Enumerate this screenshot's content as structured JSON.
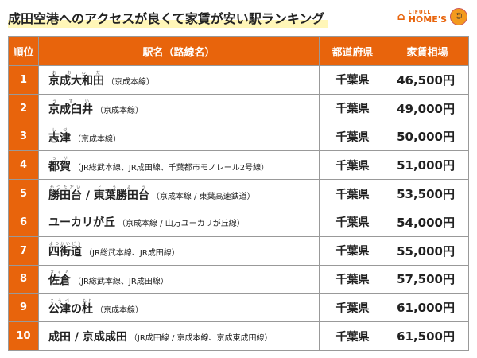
{
  "title": "成田空港へのアクセスが良くて家賃が安い駅ランキング",
  "logo": {
    "small": "LIFULL",
    "big": "HOME'S",
    "icon": "house-icon"
  },
  "colors": {
    "accent": "#e8640c",
    "highlight": "#fff6b8"
  },
  "headers": [
    "順位",
    "駅名（路線名）",
    "都道府県",
    "家賃相場"
  ],
  "rows": [
    {
      "rank": "1",
      "parts": [
        {
          "t": "京成大和田",
          "r": "おおわだ"
        }
      ],
      "line": "（京成本線）",
      "pref": "千葉県",
      "rent": "46,500円"
    },
    {
      "rank": "2",
      "parts": [
        {
          "t": "京成臼井",
          "r": "うすい"
        }
      ],
      "line": "（京成本線）",
      "pref": "千葉県",
      "rent": "49,000円"
    },
    {
      "rank": "3",
      "parts": [
        {
          "t": "志津",
          "r": "しづ"
        }
      ],
      "line": "（京成本線）",
      "pref": "千葉県",
      "rent": "50,000円"
    },
    {
      "rank": "4",
      "parts": [
        {
          "t": "都賀",
          "r": "つが"
        }
      ],
      "line": "（JR総武本線、JR成田線、千葉都市モノレール2号線）",
      "pref": "千葉県",
      "rent": "51,000円"
    },
    {
      "rank": "5",
      "parts": [
        {
          "t": "勝田台",
          "r": "かつただい"
        },
        {
          "t": " / "
        },
        {
          "t": "東葉勝田台",
          "r": "とうよう"
        }
      ],
      "line": "（京成本線 / 東葉高速鉄道）",
      "pref": "千葉県",
      "rent": "53,500円"
    },
    {
      "rank": "6",
      "parts": [
        {
          "t": "ユーカリが丘"
        }
      ],
      "line": "（京成本線 / 山万ユーカリが丘線）",
      "pref": "千葉県",
      "rent": "54,000円"
    },
    {
      "rank": "7",
      "parts": [
        {
          "t": "四街道",
          "r": "よつかいどう"
        }
      ],
      "line": "（JR総武本線、JR成田線）",
      "pref": "千葉県",
      "rent": "55,000円"
    },
    {
      "rank": "8",
      "parts": [
        {
          "t": "佐倉",
          "r": "さくら"
        }
      ],
      "line": "（JR総武本線、JR成田線）",
      "pref": "千葉県",
      "rent": "57,500円"
    },
    {
      "rank": "9",
      "parts": [
        {
          "t": "公津",
          "r": "こうづ"
        },
        {
          "t": "の"
        },
        {
          "t": "杜",
          "r": "もり"
        }
      ],
      "line": "（京成本線）",
      "pref": "千葉県",
      "rent": "61,000円"
    },
    {
      "rank": "10",
      "parts": [
        {
          "t": "成田"
        },
        {
          "t": " / "
        },
        {
          "t": "京成成田"
        }
      ],
      "line": "（JR成田線 / 京成本線、京成東成田線）",
      "pref": "千葉県",
      "rent": "61,500円"
    }
  ]
}
